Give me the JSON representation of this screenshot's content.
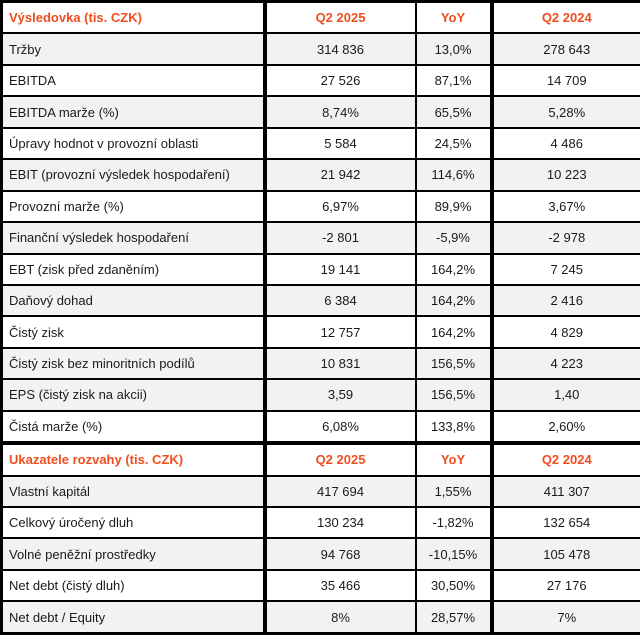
{
  "styles": {
    "accent": "#f04e1e",
    "shaded_row_bg": "#f2f2f2",
    "grid_border": "#000000"
  },
  "chart_data": {
    "type": "table",
    "columns": [
      "",
      "Q2 2025",
      "YoY",
      "Q2 2024"
    ],
    "sections": [
      {
        "header": {
          "label": "Výsledovka (tis. CZK)",
          "q2_2025": "Q2 2025",
          "yoy": "YoY",
          "q2_2024": "Q2 2024"
        },
        "rows": [
          {
            "label": "Tržby",
            "values": [
              "314 836",
              "13,0%",
              "278 643"
            ],
            "shaded": true
          },
          {
            "label": "EBITDA",
            "values": [
              "27 526",
              "87,1%",
              "14 709"
            ],
            "shaded": false
          },
          {
            "label": "EBITDA marže (%)",
            "values": [
              "8,74%",
              "65,5%",
              "5,28%"
            ],
            "shaded": true
          },
          {
            "label": "Úpravy hodnot v provozní oblasti",
            "values": [
              "5 584",
              "24,5%",
              "4 486"
            ],
            "shaded": false
          },
          {
            "label": "EBIT (provozní výsledek hospodaření)",
            "values": [
              "21 942",
              "114,6%",
              "10 223"
            ],
            "shaded": true
          },
          {
            "label": "Provozní marže (%)",
            "values": [
              "6,97%",
              "89,9%",
              "3,67%"
            ],
            "shaded": false
          },
          {
            "label": "Finanční výsledek hospodaření",
            "values": [
              "-2 801",
              "-5,9%",
              "-2 978"
            ],
            "shaded": true
          },
          {
            "label": "EBT (zisk před zdaněním)",
            "values": [
              "19 141",
              "164,2%",
              "7 245"
            ],
            "shaded": false
          },
          {
            "label": "Daňový dohad",
            "values": [
              "6 384",
              "164,2%",
              "2 416"
            ],
            "shaded": true
          },
          {
            "label": "Čistý zisk",
            "values": [
              "12 757",
              "164,2%",
              "4 829"
            ],
            "shaded": false
          },
          {
            "label": "Čistý zisk bez minoritních podílů",
            "values": [
              "10 831",
              "156,5%",
              "4 223"
            ],
            "shaded": true
          },
          {
            "label": "EPS (čistý zisk na akcii)",
            "values": [
              "3,59",
              "156,5%",
              "1,40"
            ],
            "shaded": true
          },
          {
            "label": "Čistá marže (%)",
            "values": [
              "6,08%",
              "133,8%",
              "2,60%"
            ],
            "shaded": false
          }
        ]
      },
      {
        "header": {
          "label": "Ukazatele rozvahy (tis. CZK)",
          "q2_2025": "Q2 2025",
          "yoy": "YoY",
          "q2_2024": "Q2 2024"
        },
        "rows": [
          {
            "label": "Vlastní kapitál",
            "values": [
              "417 694",
              "1,55%",
              "411 307"
            ],
            "shaded": true
          },
          {
            "label": "Celkový úročený dluh",
            "values": [
              "130 234",
              "-1,82%",
              "132 654"
            ],
            "shaded": false
          },
          {
            "label": "Volné peněžní prostředky",
            "values": [
              "94 768",
              "-10,15%",
              "105 478"
            ],
            "shaded": true
          },
          {
            "label": "Net debt (čistý dluh)",
            "values": [
              "35 466",
              "30,50%",
              "27 176"
            ],
            "shaded": false
          },
          {
            "label": "Net debt / Equity",
            "values": [
              "8%",
              "28,57%",
              "7%"
            ],
            "shaded": true
          }
        ]
      }
    ]
  }
}
